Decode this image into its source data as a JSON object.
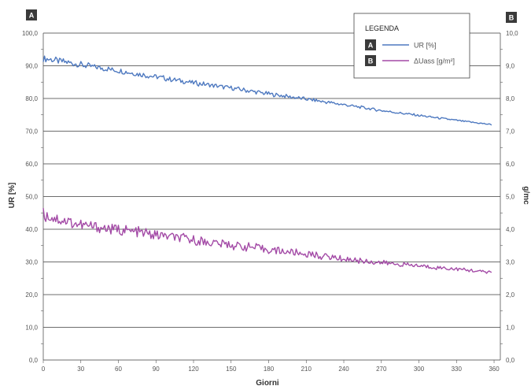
{
  "chart_data": {
    "type": "line",
    "badges": {
      "left": "A",
      "right": "B"
    },
    "xlabel": "Giorni",
    "ylabel_left": "UR [%]",
    "ylabel_right": "g/mc",
    "xlim": [
      0,
      365
    ],
    "ylim_left": [
      0,
      100
    ],
    "ylim_right": [
      0,
      10
    ],
    "x_ticks": [
      "0",
      "30",
      "60",
      "90",
      "120",
      "150",
      "180",
      "210",
      "240",
      "270",
      "300",
      "330",
      "360"
    ],
    "y_ticks_left": [
      "0,0",
      "10,0",
      "20,0",
      "30,0",
      "40,0",
      "50,0",
      "60,0",
      "70,0",
      "80,0",
      "90,0",
      "100,0"
    ],
    "y_ticks_right": [
      "0,0",
      "1,0",
      "2,0",
      "3,0",
      "4,0",
      "5,0",
      "6,0",
      "7,0",
      "8,0",
      "9,0",
      "10,0"
    ],
    "grid": "horizontal",
    "legend": {
      "title": "LEGENDA",
      "position": "top-right",
      "entries": [
        {
          "badge": "A",
          "label": "UR [%]",
          "color": "#4e79c0"
        },
        {
          "badge": "B",
          "label": "ΔUass [g/m²]",
          "color": "#a34aa6"
        }
      ]
    },
    "series": [
      {
        "name": "UR [%]",
        "axis": "left",
        "color": "#4e79c0",
        "x": [
          0,
          30,
          60,
          90,
          120,
          150,
          180,
          210,
          240,
          270,
          300,
          330,
          358
        ],
        "y": [
          92.3,
          90.3,
          88.5,
          86.6,
          84.8,
          83.2,
          81.4,
          79.8,
          78.1,
          76.3,
          74.8,
          73.3,
          72.0
        ]
      },
      {
        "name": "ΔUass [g/m²]",
        "axis": "right",
        "color": "#a34aa6",
        "x": [
          0,
          30,
          60,
          90,
          120,
          150,
          180,
          210,
          240,
          270,
          300,
          330,
          358
        ],
        "y": [
          4.45,
          4.12,
          3.98,
          3.83,
          3.66,
          3.52,
          3.38,
          3.24,
          3.1,
          2.97,
          2.88,
          2.78,
          2.68
        ]
      }
    ]
  }
}
